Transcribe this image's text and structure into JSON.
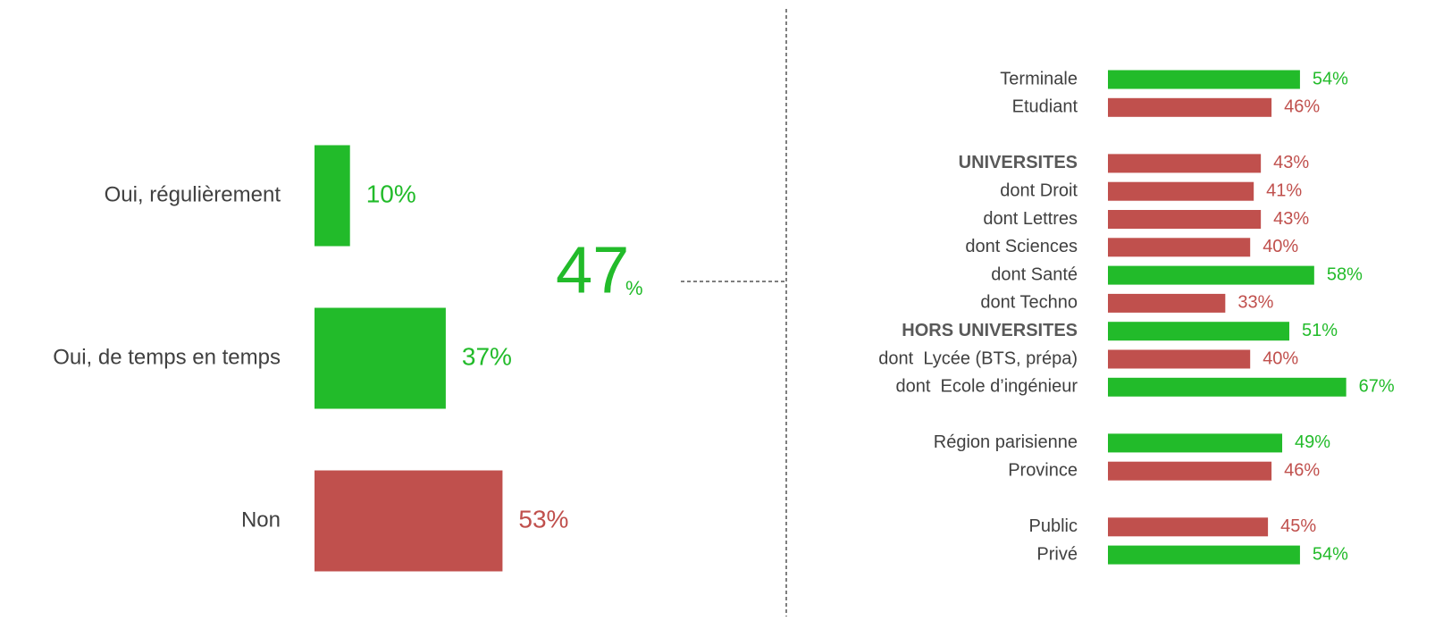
{
  "chart_data": [
    {
      "type": "bar",
      "categories": [
        "Oui, régulièrement",
        "Oui, de temps en temps",
        "Non"
      ],
      "values": [
        10,
        37,
        53
      ],
      "value_labels": [
        "10%",
        "37%",
        "53%"
      ],
      "colors": [
        "#22bb2a",
        "#22bb2a",
        "#c0504d"
      ],
      "annotation": {
        "number": "47",
        "unit": "%"
      }
    },
    {
      "type": "bar",
      "categories": [
        "Terminale",
        "Etudiant",
        null,
        "UNIVERSITES",
        "dont Droit",
        "dont Lettres",
        "dont Sciences",
        "dont Santé",
        "dont Techno",
        "HORS UNIVERSITES",
        "dont  Lycée (BTS, prépa)",
        "dont  Ecole d’ingénieur",
        null,
        "Région parisienne",
        "Province",
        null,
        "Public",
        "Privé"
      ],
      "values": [
        54,
        46,
        null,
        43,
        41,
        43,
        40,
        58,
        33,
        51,
        40,
        67,
        null,
        49,
        46,
        null,
        45,
        54
      ],
      "value_labels": [
        "54%",
        "46%",
        null,
        "43%",
        "41%",
        "43%",
        "40%",
        "58%",
        "33%",
        "51%",
        "40%",
        "67%",
        null,
        "49%",
        "46%",
        null,
        "45%",
        "54%"
      ],
      "colors": [
        "#22bb2a",
        "#c0504d",
        null,
        "#c0504d",
        "#c0504d",
        "#c0504d",
        "#c0504d",
        "#22bb2a",
        "#c0504d",
        "#22bb2a",
        "#c0504d",
        "#22bb2a",
        null,
        "#22bb2a",
        "#c0504d",
        null,
        "#c0504d",
        "#22bb2a"
      ],
      "bold": [
        false,
        false,
        null,
        true,
        false,
        false,
        false,
        false,
        false,
        true,
        false,
        false,
        null,
        false,
        false,
        null,
        false,
        false
      ]
    }
  ]
}
